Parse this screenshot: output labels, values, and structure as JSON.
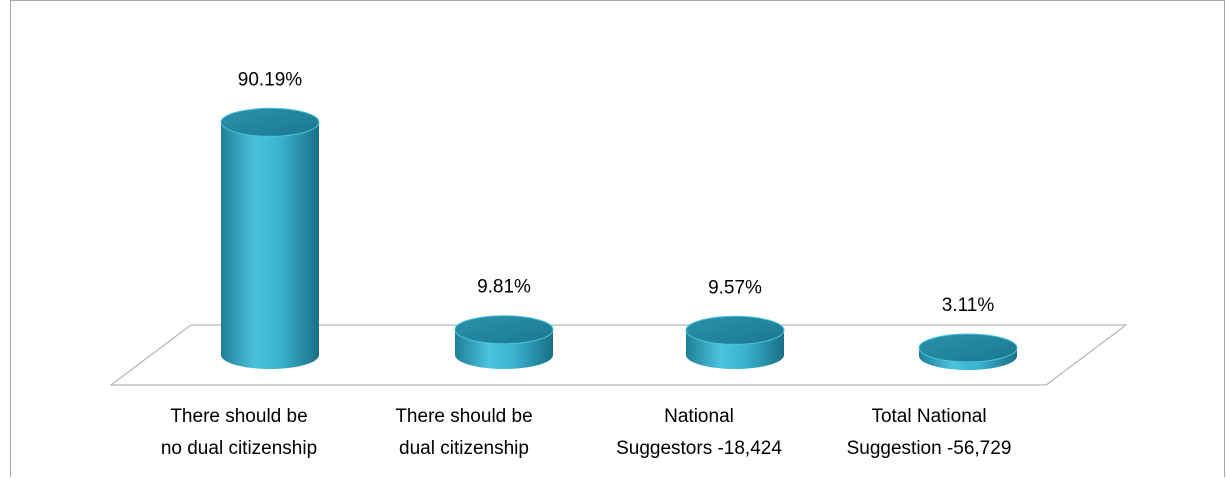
{
  "chart_data": {
    "type": "bar",
    "style": "3d-cylinder",
    "title": "",
    "xlabel": "",
    "ylabel": "",
    "grid": false,
    "legend": "none",
    "ylim": [
      0,
      100
    ],
    "bar_color": "#3ab3cf",
    "categories": [
      [
        "There should be",
        "no dual citizenship"
      ],
      [
        "There should be",
        "dual citizenship"
      ],
      [
        "National",
        "Suggestors -18,424"
      ],
      [
        "Total National",
        "Suggestion -56,729"
      ]
    ],
    "values": [
      90.19,
      9.81,
      9.57,
      3.11
    ],
    "data_labels": [
      "90.19%",
      "9.81%",
      "9.57%",
      "3.11%"
    ]
  }
}
